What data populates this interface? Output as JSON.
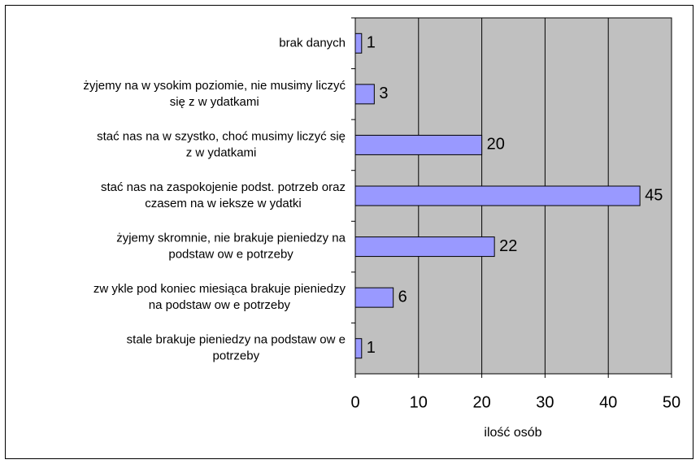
{
  "chart_data": {
    "type": "bar",
    "orientation": "horizontal",
    "categories": [
      [
        "brak danych"
      ],
      [
        "żyjemy na w ysokim poziomie, nie musimy liczyć",
        "się z w ydatkami"
      ],
      [
        "stać nas na w szystko, choć musimy liczyć się",
        "z w ydatkami"
      ],
      [
        "stać nas na zaspokojenie podst. potrzeb oraz",
        "czasem na w ieksze w ydatki"
      ],
      [
        "żyjemy skromnie, nie brakuje pieniedzy na",
        "podstaw ow e potrzeby"
      ],
      [
        "zw ykle pod koniec miesiąca brakuje pieniedzy",
        "na podstaw ow e potrzeby"
      ],
      [
        "stale brakuje pieniedzy na podstaw ow e",
        "potrzeby"
      ]
    ],
    "values": [
      1,
      3,
      20,
      45,
      22,
      6,
      1
    ],
    "color": "#9999ff",
    "xlabel": "ilość osób",
    "xlim": [
      0,
      50
    ],
    "xticks": [
      0,
      10,
      20,
      30,
      40,
      50
    ],
    "grid": true
  }
}
